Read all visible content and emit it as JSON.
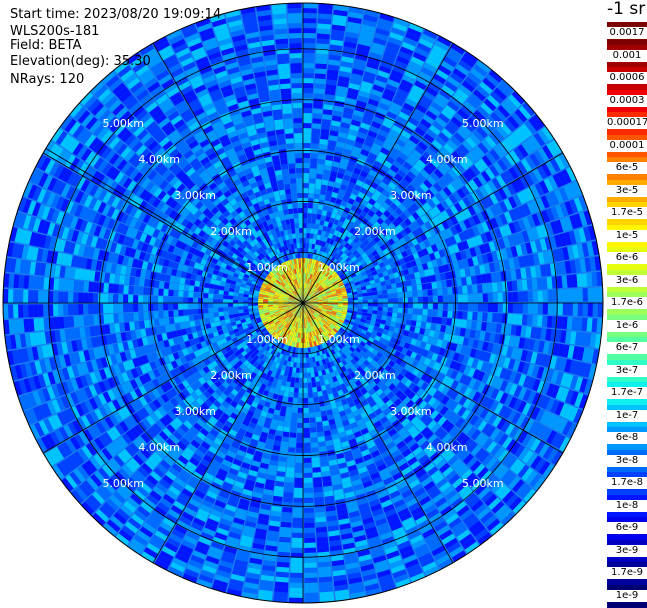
{
  "header": {
    "start_time": "Start time: 2023/08/20 19:09:14",
    "instrument": "WLS200s-181",
    "field": "Field: BETA",
    "elevation": "Elevation(deg): 35.30",
    "nrays": "NRays: 120"
  },
  "colorbar": {
    "title": "-1 sr",
    "labels": [
      "0.0017",
      "0.001",
      "0.0006",
      "0.0003",
      "0.00017",
      "0.0001",
      "6e-5",
      "3e-5",
      "1.7e-5",
      "1e-5",
      "6e-6",
      "3e-6",
      "1.7e-6",
      "1e-6",
      "6e-7",
      "3e-7",
      "1.7e-7",
      "1e-7",
      "6e-8",
      "3e-8",
      "1.7e-8",
      "1e-8",
      "6e-9",
      "3e-9",
      "1.7e-9",
      "1e-9"
    ],
    "colors": [
      "#7f0000",
      "#a00000",
      "#c80000",
      "#ee0000",
      "#ff2a00",
      "#ff5500",
      "#ff8000",
      "#ffaa00",
      "#ffd400",
      "#fff500",
      "#e6ff10",
      "#c0ff36",
      "#9cff5a",
      "#78ff7e",
      "#54ffa2",
      "#30ffc7",
      "#10f0ee",
      "#00c4ff",
      "#0098ff",
      "#006cff",
      "#0040ff",
      "#0016ff",
      "#0000ec",
      "#0000c4",
      "#00009c",
      "#000074"
    ]
  },
  "chart_data": {
    "type": "heatmap",
    "projection": "polar-ppi",
    "field": "BETA",
    "units": "-1 sr",
    "nrays": 120,
    "range_rings_km": [
      1,
      2,
      3,
      4,
      5
    ],
    "range_labels": [
      "1.00km",
      "2.00km",
      "3.00km",
      "4.00km",
      "5.00km"
    ],
    "max_range_km": 5.9,
    "spoke_angles_deg": [
      0,
      30,
      60,
      90,
      120,
      150,
      180,
      210,
      240,
      270,
      300,
      301,
      330
    ],
    "label_azimuths_deg": [
      315,
      45,
      225,
      135
    ],
    "color_scale": "log",
    "value_range": [
      1e-09,
      0.0017
    ],
    "near_field_values": {
      "range_km": [
        0,
        1.0
      ],
      "typical": 1e-05
    },
    "far_field_values": {
      "range_km": [
        1.0,
        5.9
      ],
      "typical": 3e-08
    }
  }
}
